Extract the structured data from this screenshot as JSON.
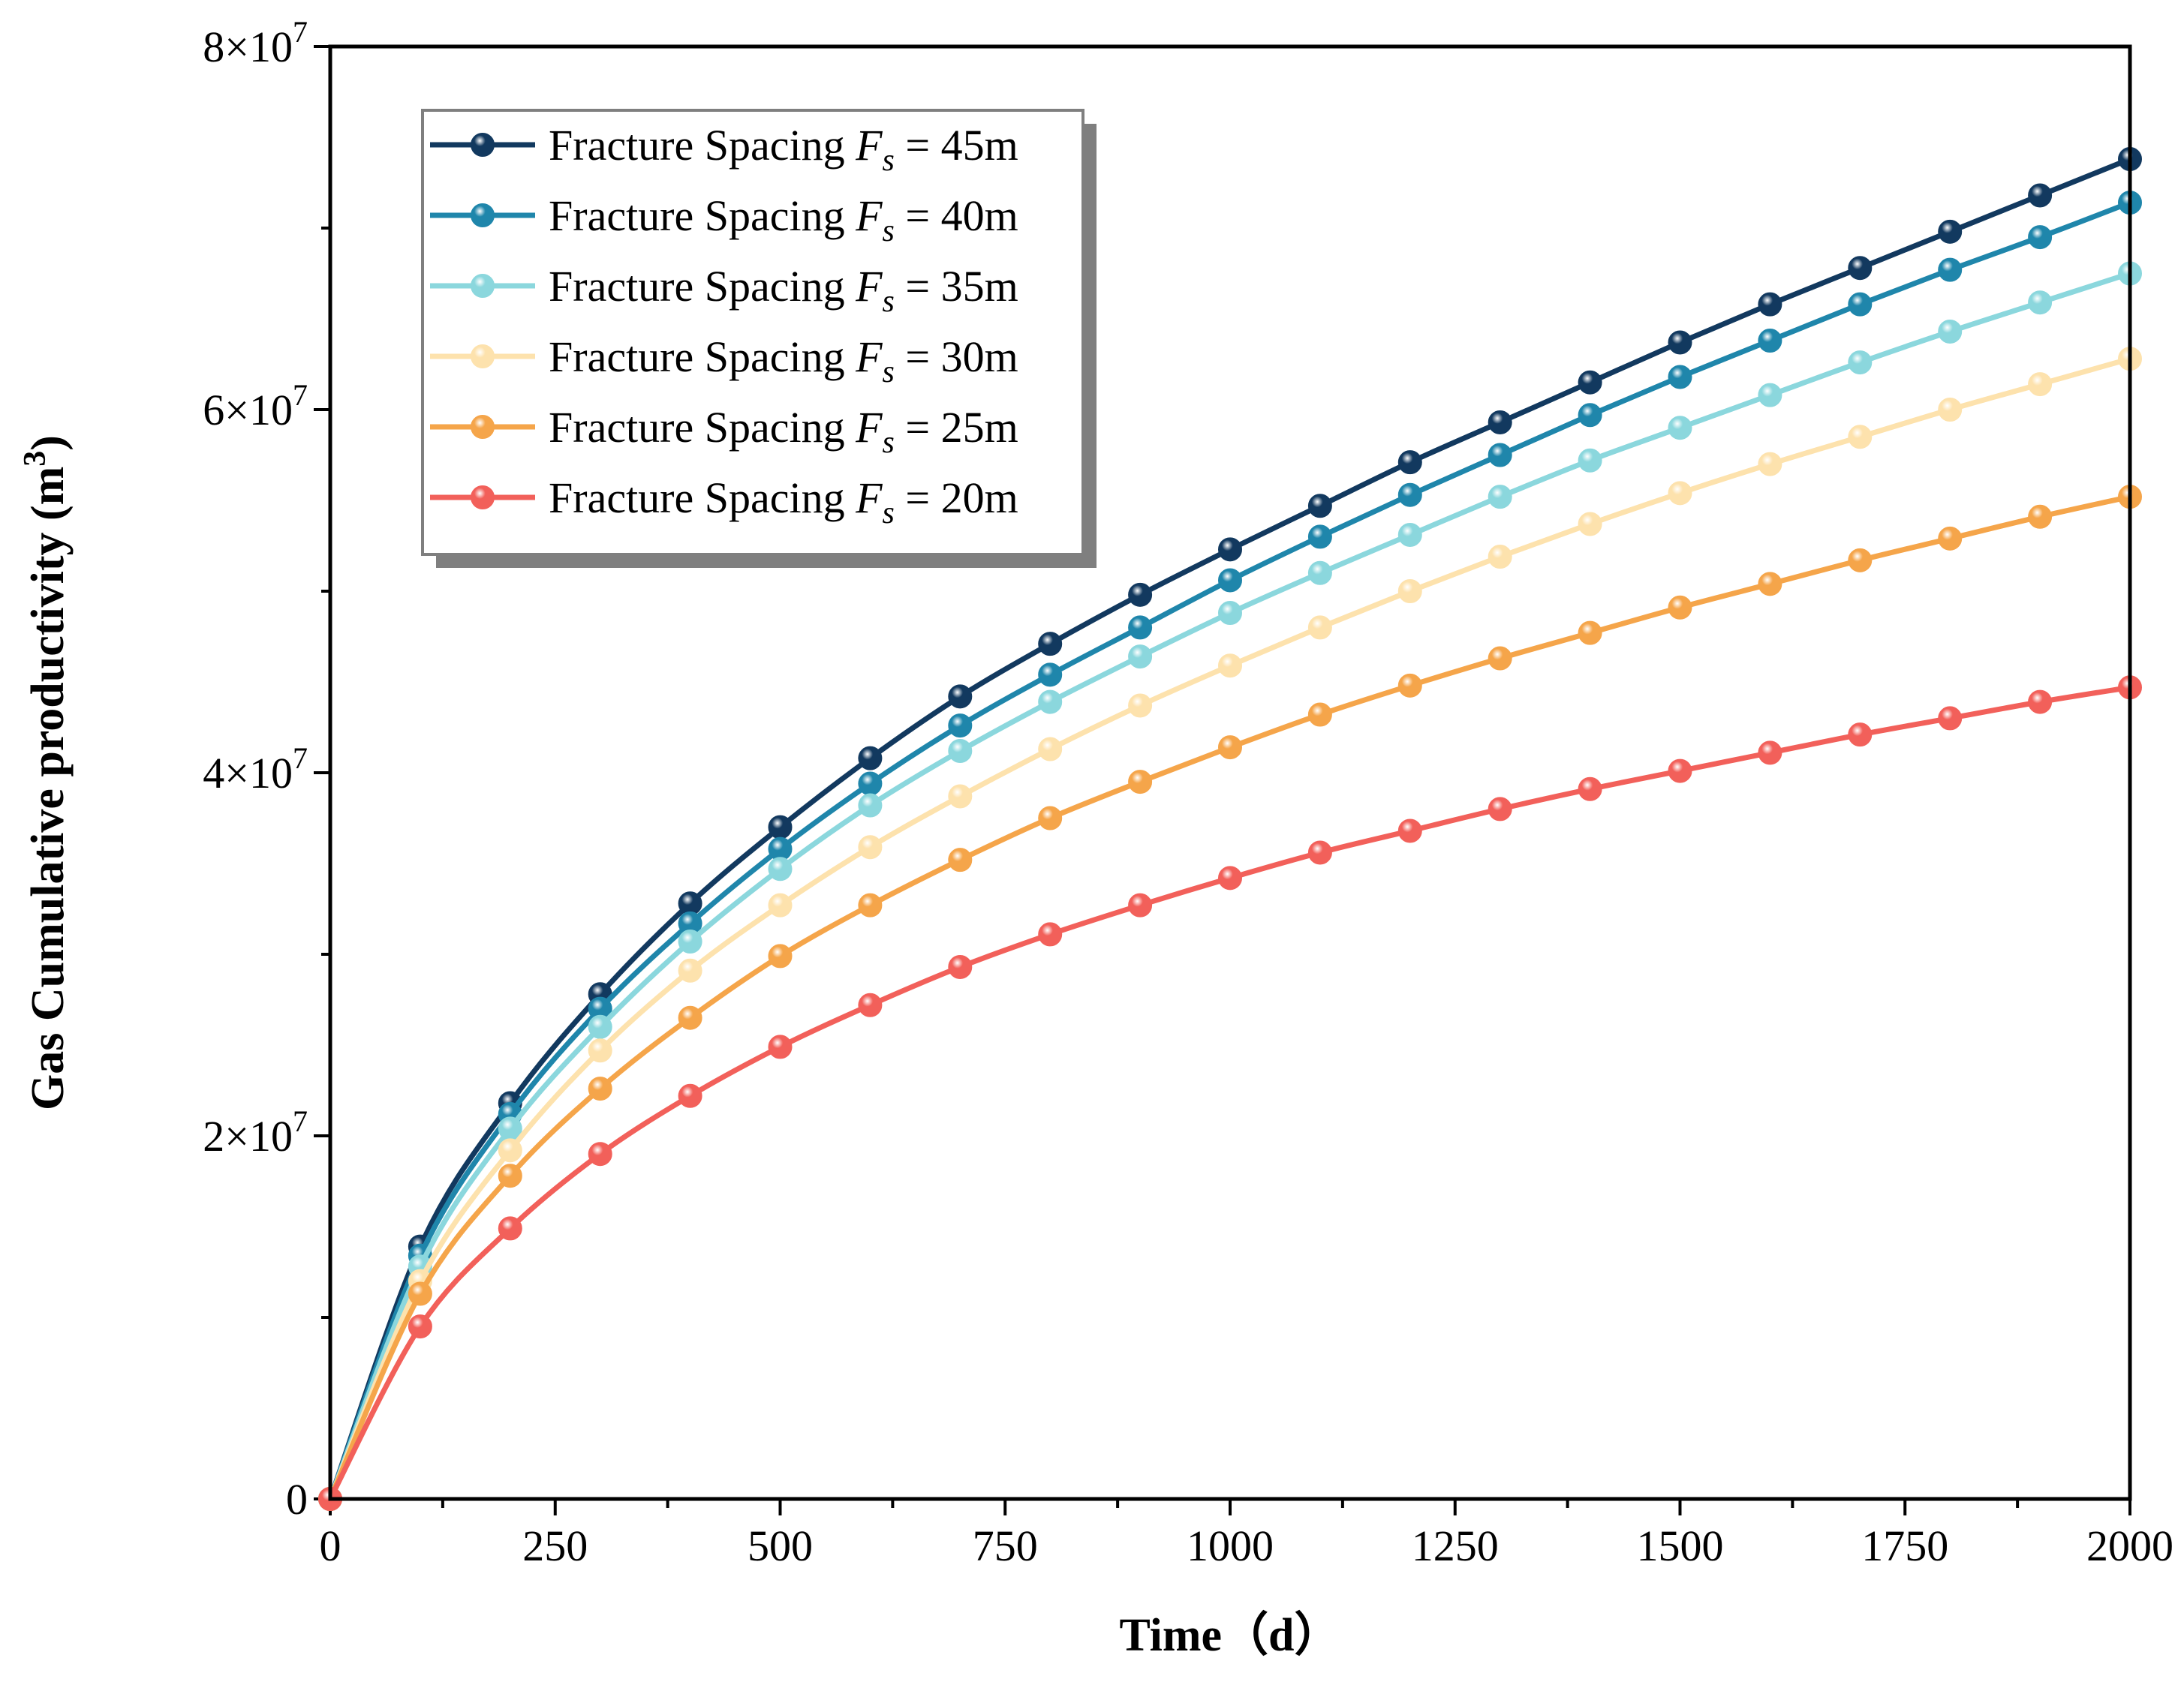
{
  "chart_data": {
    "type": "line",
    "title": "",
    "xlabel": "Time（d）",
    "ylabel_main": "Gas Cumulative productivity (m",
    "ylabel_sup": "3",
    "ylabel_close": ")",
    "xlim": [
      0,
      2000
    ],
    "ylim": [
      0,
      80000000
    ],
    "xticks": [
      0,
      250,
      500,
      750,
      1000,
      1250,
      1500,
      1750,
      2000
    ],
    "xtick_labels": [
      "0",
      "250",
      "500",
      "750",
      "1000",
      "1250",
      "1500",
      "1750",
      "2000"
    ],
    "yticks": [
      0,
      20000000,
      40000000,
      60000000,
      80000000
    ],
    "ytick_labels": [
      {
        "base": "0",
        "sup": ""
      },
      {
        "base": "2×10",
        "sup": "7"
      },
      {
        "base": "4×10",
        "sup": "7"
      },
      {
        "base": "6×10",
        "sup": "7"
      },
      {
        "base": "8×10",
        "sup": "7"
      }
    ],
    "legend_position": "top-left",
    "legend_prefix": "Fracture Spacing ",
    "legend_symbol": "F",
    "legend_subscript": "s",
    "x": [
      0,
      100,
      200,
      300,
      400,
      500,
      600,
      700,
      800,
      900,
      1000,
      1100,
      1200,
      1300,
      1400,
      1500,
      1600,
      1700,
      1800,
      1900,
      2000
    ],
    "series": [
      {
        "name": "Fracture Spacing Fs = 45m",
        "suffix": " = 45m",
        "color": "#12395f",
        "values": [
          0,
          13.9,
          21.8,
          27.8,
          32.8,
          37.0,
          40.8,
          44.2,
          47.1,
          49.8,
          52.3,
          54.7,
          57.1,
          59.3,
          61.5,
          63.7,
          65.8,
          67.8,
          69.8,
          71.8,
          73.8
        ]
      },
      {
        "name": "Fracture Spacing Fs = 40m",
        "suffix": " = 40m",
        "color": "#1f86ab",
        "values": [
          0,
          13.4,
          21.2,
          27.0,
          31.7,
          35.8,
          39.4,
          42.6,
          45.4,
          48.0,
          50.6,
          53.0,
          55.3,
          57.5,
          59.7,
          61.8,
          63.8,
          65.8,
          67.7,
          69.5,
          71.4
        ]
      },
      {
        "name": "Fracture Spacing Fs = 35m",
        "suffix": " = 35m",
        "color": "#8bd7dd",
        "values": [
          0,
          12.8,
          20.4,
          26.0,
          30.7,
          34.7,
          38.2,
          41.2,
          43.9,
          46.4,
          48.8,
          51.0,
          53.1,
          55.2,
          57.2,
          59.0,
          60.8,
          62.6,
          64.3,
          65.9,
          67.5
        ]
      },
      {
        "name": "Fracture Spacing Fs = 30m",
        "suffix": " = 30m",
        "color": "#fde2ad",
        "values": [
          0,
          12.0,
          19.2,
          24.7,
          29.1,
          32.7,
          35.9,
          38.7,
          41.3,
          43.7,
          45.9,
          48.0,
          50.0,
          51.9,
          53.7,
          55.4,
          57.0,
          58.5,
          60.0,
          61.4,
          62.8
        ]
      },
      {
        "name": "Fracture Spacing Fs = 25m",
        "suffix": " = 25m",
        "color": "#f5a54a",
        "values": [
          0,
          11.3,
          17.8,
          22.6,
          26.5,
          29.9,
          32.7,
          35.2,
          37.5,
          39.5,
          41.4,
          43.2,
          44.8,
          46.3,
          47.7,
          49.1,
          50.4,
          51.7,
          52.9,
          54.1,
          55.2
        ]
      },
      {
        "name": "Fracture Spacing Fs = 20m",
        "suffix": " = 20m",
        "color": "#f2605a",
        "values": [
          0,
          9.5,
          14.9,
          19.0,
          22.2,
          24.9,
          27.2,
          29.3,
          31.1,
          32.7,
          34.2,
          35.6,
          36.8,
          38.0,
          39.1,
          40.1,
          41.1,
          42.1,
          43.0,
          43.9,
          44.7
        ]
      }
    ],
    "y_scale_note_multiplier": 1000000
  }
}
